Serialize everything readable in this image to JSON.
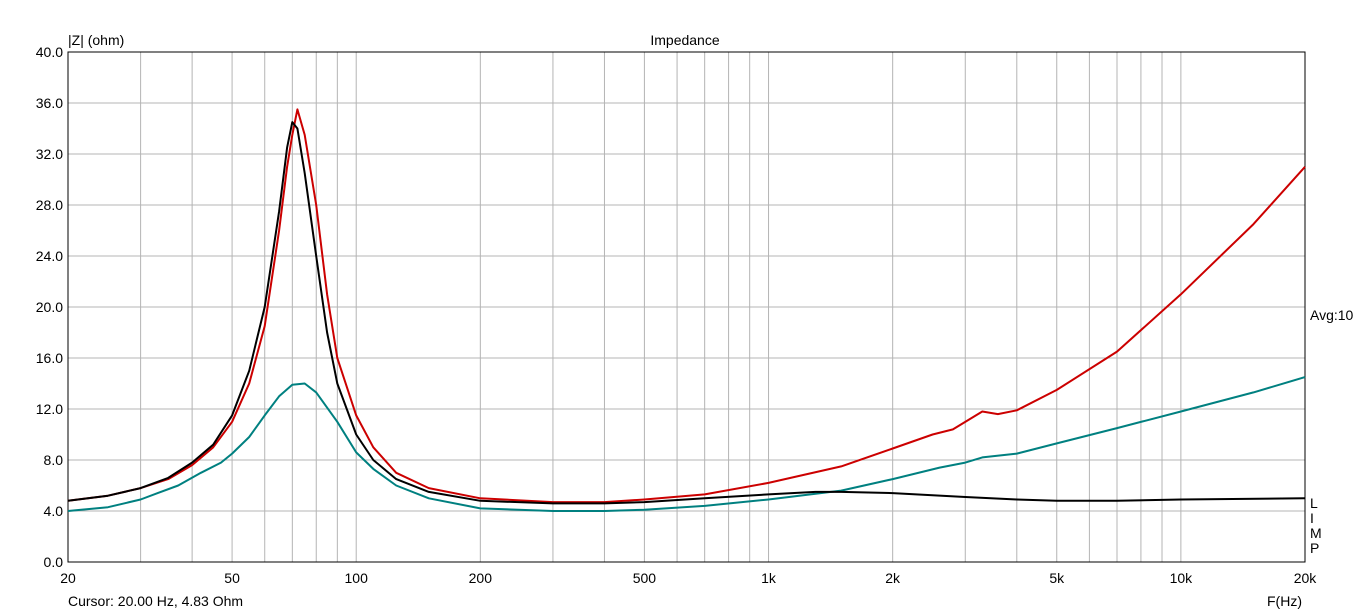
{
  "chart_data": {
    "type": "line",
    "title": "Impedance",
    "ylabel": "|Z| (ohm)",
    "xlabel": "F(Hz)",
    "x_scale": "log",
    "xlim": [
      20,
      20000
    ],
    "ylim": [
      0,
      40
    ],
    "grid": true,
    "x_ticks": [
      {
        "v": 20,
        "label": "20"
      },
      {
        "v": 50,
        "label": "50"
      },
      {
        "v": 100,
        "label": "100"
      },
      {
        "v": 200,
        "label": "200"
      },
      {
        "v": 500,
        "label": "500"
      },
      {
        "v": 1000,
        "label": "1k"
      },
      {
        "v": 2000,
        "label": "2k"
      },
      {
        "v": 5000,
        "label": "5k"
      },
      {
        "v": 10000,
        "label": "10k"
      },
      {
        "v": 20000,
        "label": "20k"
      }
    ],
    "y_ticks": [
      {
        "v": 0,
        "label": "0.0"
      },
      {
        "v": 4,
        "label": "4.0"
      },
      {
        "v": 8,
        "label": "8.0"
      },
      {
        "v": 12,
        "label": "12.0"
      },
      {
        "v": 16,
        "label": "16.0"
      },
      {
        "v": 20,
        "label": "20.0"
      },
      {
        "v": 24,
        "label": "24.0"
      },
      {
        "v": 28,
        "label": "28.0"
      },
      {
        "v": 32,
        "label": "32.0"
      },
      {
        "v": 36,
        "label": "36.0"
      },
      {
        "v": 40,
        "label": "40.0"
      }
    ],
    "series": [
      {
        "color": "#008080",
        "points": [
          [
            20,
            4.0
          ],
          [
            25,
            4.3
          ],
          [
            30,
            4.9
          ],
          [
            33,
            5.4
          ],
          [
            37,
            6.0
          ],
          [
            42,
            7.0
          ],
          [
            47,
            7.8
          ],
          [
            50,
            8.5
          ],
          [
            55,
            9.8
          ],
          [
            60,
            11.5
          ],
          [
            65,
            13.0
          ],
          [
            70,
            13.9
          ],
          [
            75,
            14.0
          ],
          [
            80,
            13.3
          ],
          [
            90,
            11.0
          ],
          [
            100,
            8.6
          ],
          [
            110,
            7.3
          ],
          [
            125,
            6.0
          ],
          [
            150,
            5.0
          ],
          [
            200,
            4.2
          ],
          [
            300,
            4.0
          ],
          [
            400,
            4.0
          ],
          [
            500,
            4.1
          ],
          [
            700,
            4.4
          ],
          [
            1000,
            4.9
          ],
          [
            1500,
            5.6
          ],
          [
            2000,
            6.5
          ],
          [
            2600,
            7.4
          ],
          [
            3000,
            7.8
          ],
          [
            3300,
            8.2
          ],
          [
            4000,
            8.5
          ],
          [
            5000,
            9.3
          ],
          [
            7000,
            10.5
          ],
          [
            10000,
            11.8
          ],
          [
            15000,
            13.3
          ],
          [
            20000,
            14.5
          ]
        ]
      },
      {
        "color": "#cc0000",
        "points": [
          [
            20,
            4.8
          ],
          [
            25,
            5.2
          ],
          [
            30,
            5.8
          ],
          [
            35,
            6.5
          ],
          [
            40,
            7.6
          ],
          [
            45,
            9.0
          ],
          [
            50,
            11.0
          ],
          [
            55,
            14.0
          ],
          [
            60,
            18.5
          ],
          [
            65,
            26.0
          ],
          [
            68,
            31.0
          ],
          [
            70,
            33.5
          ],
          [
            72,
            35.5
          ],
          [
            75,
            33.5
          ],
          [
            80,
            28.0
          ],
          [
            85,
            21.0
          ],
          [
            90,
            16.0
          ],
          [
            100,
            11.5
          ],
          [
            110,
            9.0
          ],
          [
            125,
            7.0
          ],
          [
            150,
            5.8
          ],
          [
            200,
            5.0
          ],
          [
            300,
            4.7
          ],
          [
            400,
            4.7
          ],
          [
            500,
            4.9
          ],
          [
            700,
            5.3
          ],
          [
            1000,
            6.2
          ],
          [
            1500,
            7.5
          ],
          [
            2000,
            8.9
          ],
          [
            2500,
            10.0
          ],
          [
            2800,
            10.4
          ],
          [
            3300,
            11.8
          ],
          [
            3600,
            11.6
          ],
          [
            4000,
            11.9
          ],
          [
            5000,
            13.5
          ],
          [
            7000,
            16.5
          ],
          [
            10000,
            21.0
          ],
          [
            15000,
            26.5
          ],
          [
            20000,
            31.0
          ]
        ]
      },
      {
        "color": "#000000",
        "points": [
          [
            20,
            4.8
          ],
          [
            25,
            5.2
          ],
          [
            30,
            5.8
          ],
          [
            35,
            6.6
          ],
          [
            40,
            7.8
          ],
          [
            45,
            9.2
          ],
          [
            50,
            11.5
          ],
          [
            55,
            15.0
          ],
          [
            60,
            20.0
          ],
          [
            65,
            27.5
          ],
          [
            68,
            32.5
          ],
          [
            70,
            34.5
          ],
          [
            72,
            34.0
          ],
          [
            75,
            30.5
          ],
          [
            80,
            24.0
          ],
          [
            85,
            18.0
          ],
          [
            90,
            14.0
          ],
          [
            100,
            10.0
          ],
          [
            110,
            8.0
          ],
          [
            125,
            6.5
          ],
          [
            150,
            5.5
          ],
          [
            200,
            4.8
          ],
          [
            300,
            4.6
          ],
          [
            400,
            4.6
          ],
          [
            500,
            4.7
          ],
          [
            700,
            5.0
          ],
          [
            1000,
            5.3
          ],
          [
            1300,
            5.5
          ],
          [
            1500,
            5.5
          ],
          [
            2000,
            5.4
          ],
          [
            3000,
            5.1
          ],
          [
            4000,
            4.9
          ],
          [
            5000,
            4.8
          ],
          [
            7000,
            4.8
          ],
          [
            10000,
            4.9
          ],
          [
            20000,
            5.0
          ]
        ]
      }
    ],
    "annotations": [
      "Avg:10",
      "L",
      "I",
      "M",
      "P"
    ],
    "cursor_text": "Cursor: 20.00 Hz, 4.83 Ohm"
  }
}
